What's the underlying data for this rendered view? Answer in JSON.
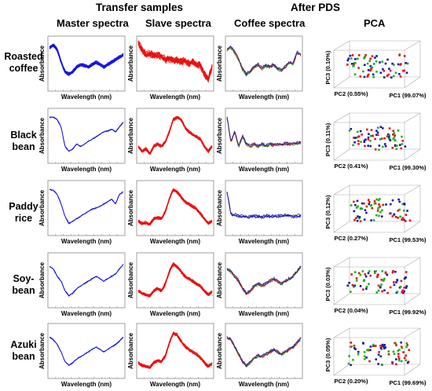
{
  "headers": {
    "transfer_samples": "Transfer samples",
    "after_pds": "After PDS",
    "columns": [
      "Master spectra",
      "Slave spectra",
      "Coffee spectra",
      "PCA"
    ]
  },
  "rows": [
    {
      "label_line1": "Roasted",
      "label_line2": "coffee",
      "pc1": "PC1 (99.07%)",
      "pc2": "PC2 (0.55%)",
      "pc3": "PC3 (0.10%)"
    },
    {
      "label_line1": "Black",
      "label_line2": "bean",
      "pc1": "PC1 (99.30%)",
      "pc2": "PC2 (0.41%)",
      "pc3": "PC3 (0.11%)"
    },
    {
      "label_line1": "Paddy",
      "label_line2": "rice",
      "pc1": "PC1 (99.53%)",
      "pc2": "PC2 (0.27%)",
      "pc3": "PC3 (0.12%)"
    },
    {
      "label_line1": "Soy-",
      "label_line2": "bean",
      "pc1": "PC1 (99.92%)",
      "pc2": "PC2 (0.04%)",
      "pc3": "PC3 (0.03%)"
    },
    {
      "label_line1": "Azuki",
      "label_line2": "bean",
      "pc1": "PC1 (99.69%)",
      "pc2": "PC2 (0.20%)",
      "pc3": "PC3 (0.05%)"
    }
  ],
  "axis_labels": {
    "x": "Wavelength (nm)",
    "y": "Absorbance"
  },
  "colors": {
    "master": "#1010e0",
    "slave": "#e81010",
    "coffee_blue": "#1a1aa8",
    "green": "#22b022"
  },
  "chart_data": {
    "type": "line",
    "description_free": true,
    "panels": [
      {
        "row": "Roasted coffee",
        "column": "Master spectra",
        "series_color": "blue",
        "profile": [
          0.85,
          0.9,
          0.8,
          0.55,
          0.35,
          0.3,
          0.35,
          0.45,
          0.5,
          0.48,
          0.45,
          0.5,
          0.55,
          0.5,
          0.45,
          0.5,
          0.55,
          0.6,
          0.65,
          0.7
        ]
      },
      {
        "row": "Roasted coffee",
        "column": "Slave spectra",
        "series_color": "red",
        "profile": [
          0.95,
          0.8,
          0.7,
          0.72,
          0.68,
          0.7,
          0.66,
          0.6,
          0.62,
          0.58,
          0.6,
          0.56,
          0.58,
          0.52,
          0.55,
          0.5,
          0.48,
          0.3,
          0.2,
          0.45
        ]
      },
      {
        "row": "Roasted coffee",
        "column": "Coffee spectra",
        "series_color": "blue/green/red",
        "profile": [
          0.8,
          0.85,
          0.75,
          0.6,
          0.4,
          0.3,
          0.35,
          0.45,
          0.5,
          0.42,
          0.48,
          0.45,
          0.5,
          0.42,
          0.38,
          0.45,
          0.55,
          0.5,
          0.75,
          0.7
        ]
      },
      {
        "row": "Black bean",
        "column": "Master spectra",
        "series_color": "blue",
        "profile": [
          0.9,
          0.9,
          0.85,
          0.7,
          0.3,
          0.2,
          0.25,
          0.35,
          0.3,
          0.35,
          0.4,
          0.45,
          0.5,
          0.55,
          0.6,
          0.62,
          0.65,
          0.6,
          0.7,
          0.8
        ]
      },
      {
        "row": "Black bean",
        "column": "Slave spectra",
        "series_color": "red",
        "profile": [
          0.3,
          0.2,
          0.25,
          0.15,
          0.3,
          0.35,
          0.3,
          0.4,
          0.6,
          0.85,
          0.9,
          0.85,
          0.7,
          0.6,
          0.55,
          0.5,
          0.45,
          0.3,
          0.2,
          0.3
        ]
      },
      {
        "row": "Black bean",
        "column": "Coffee spectra",
        "series_color": "blue/red",
        "profile": [
          0.9,
          0.4,
          0.6,
          0.3,
          0.5,
          0.35,
          0.3,
          0.35,
          0.3,
          0.35,
          0.3,
          0.35,
          0.33,
          0.35,
          0.34,
          0.36,
          0.35,
          0.36,
          0.37,
          0.38
        ]
      },
      {
        "row": "Paddy rice",
        "column": "Master spectra",
        "series_color": "blue",
        "profile": [
          0.9,
          0.88,
          0.8,
          0.6,
          0.35,
          0.2,
          0.25,
          0.3,
          0.35,
          0.4,
          0.45,
          0.5,
          0.52,
          0.55,
          0.6,
          0.65,
          0.7,
          0.6,
          0.8,
          0.85
        ]
      },
      {
        "row": "Paddy rice",
        "column": "Slave spectra",
        "series_color": "red",
        "profile": [
          0.25,
          0.2,
          0.22,
          0.18,
          0.3,
          0.32,
          0.3,
          0.45,
          0.7,
          0.9,
          0.85,
          0.75,
          0.65,
          0.6,
          0.55,
          0.5,
          0.4,
          0.3,
          0.2,
          0.25
        ]
      },
      {
        "row": "Paddy rice",
        "column": "Coffee spectra",
        "series_color": "blue",
        "profile": [
          0.85,
          0.4,
          0.38,
          0.36,
          0.35,
          0.34,
          0.35,
          0.36,
          0.35,
          0.34,
          0.36,
          0.35,
          0.36,
          0.35,
          0.36,
          0.37,
          0.36,
          0.35,
          0.36,
          0.37
        ]
      },
      {
        "row": "Soybean",
        "column": "Master spectra",
        "series_color": "blue",
        "profile": [
          0.8,
          0.75,
          0.6,
          0.5,
          0.3,
          0.2,
          0.25,
          0.35,
          0.4,
          0.45,
          0.5,
          0.55,
          0.6,
          0.55,
          0.5,
          0.55,
          0.6,
          0.65,
          0.75,
          0.85
        ]
      },
      {
        "row": "Soybean",
        "column": "Slave spectra",
        "series_color": "red",
        "profile": [
          0.3,
          0.25,
          0.22,
          0.2,
          0.3,
          0.35,
          0.3,
          0.45,
          0.7,
          0.85,
          0.8,
          0.7,
          0.6,
          0.55,
          0.5,
          0.45,
          0.4,
          0.3,
          0.22,
          0.28
        ]
      },
      {
        "row": "Soybean",
        "column": "Coffee spectra",
        "series_color": "blue/red",
        "profile": [
          0.75,
          0.7,
          0.6,
          0.5,
          0.35,
          0.25,
          0.3,
          0.4,
          0.45,
          0.4,
          0.45,
          0.5,
          0.55,
          0.5,
          0.45,
          0.5,
          0.55,
          0.6,
          0.7,
          0.8
        ]
      },
      {
        "row": "Azuki bean",
        "column": "Master spectra",
        "series_color": "blue",
        "profile": [
          0.8,
          0.75,
          0.65,
          0.5,
          0.3,
          0.22,
          0.28,
          0.35,
          0.4,
          0.45,
          0.5,
          0.55,
          0.6,
          0.55,
          0.5,
          0.55,
          0.6,
          0.65,
          0.72,
          0.8
        ]
      },
      {
        "row": "Azuki bean",
        "column": "Slave spectra",
        "series_color": "red",
        "profile": [
          0.28,
          0.22,
          0.2,
          0.18,
          0.28,
          0.32,
          0.3,
          0.42,
          0.68,
          0.88,
          0.85,
          0.72,
          0.62,
          0.55,
          0.5,
          0.45,
          0.38,
          0.28,
          0.2,
          0.26
        ]
      },
      {
        "row": "Azuki bean",
        "column": "Coffee spectra",
        "series_color": "blue/red",
        "profile": [
          0.8,
          0.75,
          0.6,
          0.45,
          0.3,
          0.22,
          0.28,
          0.38,
          0.42,
          0.4,
          0.45,
          0.5,
          0.55,
          0.5,
          0.45,
          0.5,
          0.55,
          0.6,
          0.68,
          0.78
        ]
      }
    ]
  }
}
